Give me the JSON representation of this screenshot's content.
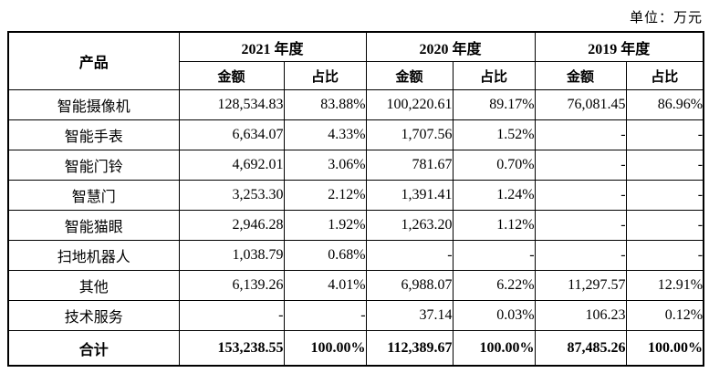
{
  "unit_label": "单位：万元",
  "table": {
    "product_header": "产品",
    "year_headers": [
      "2021 年度",
      "2020 年度",
      "2019 年度"
    ],
    "sub_headers": {
      "amount": "金额",
      "ratio": "占比"
    },
    "rows": [
      {
        "product": "智能摄像机",
        "values": [
          "128,534.83",
          "83.88%",
          "100,220.61",
          "89.17%",
          "76,081.45",
          "86.96%"
        ],
        "is_total": false
      },
      {
        "product": "智能手表",
        "values": [
          "6,634.07",
          "4.33%",
          "1,707.56",
          "1.52%",
          "-",
          "-"
        ],
        "is_total": false
      },
      {
        "product": "智能门铃",
        "values": [
          "4,692.01",
          "3.06%",
          "781.67",
          "0.70%",
          "-",
          "-"
        ],
        "is_total": false
      },
      {
        "product": "智慧门",
        "values": [
          "3,253.30",
          "2.12%",
          "1,391.41",
          "1.24%",
          "-",
          "-"
        ],
        "is_total": false
      },
      {
        "product": "智能猫眼",
        "values": [
          "2,946.28",
          "1.92%",
          "1,263.20",
          "1.12%",
          "-",
          "-"
        ],
        "is_total": false
      },
      {
        "product": "扫地机器人",
        "values": [
          "1,038.79",
          "0.68%",
          "-",
          "-",
          "-",
          "-"
        ],
        "is_total": false
      },
      {
        "product": "其他",
        "values": [
          "6,139.26",
          "4.01%",
          "6,988.07",
          "6.22%",
          "11,297.57",
          "12.91%"
        ],
        "is_total": false
      },
      {
        "product": "技术服务",
        "values": [
          "-",
          "-",
          "37.14",
          "0.03%",
          "106.23",
          "0.12%"
        ],
        "is_total": false
      },
      {
        "product": "合计",
        "values": [
          "153,238.55",
          "100.00%",
          "112,389.67",
          "100.00%",
          "87,485.26",
          "100.00%"
        ],
        "is_total": true
      }
    ]
  }
}
